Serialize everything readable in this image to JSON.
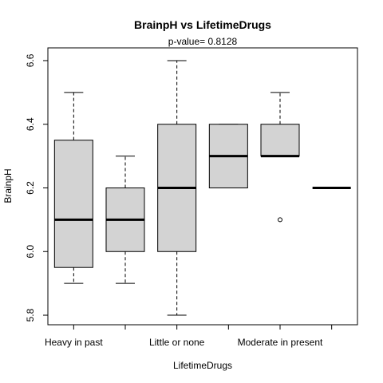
{
  "chart_data": {
    "type": "boxplot",
    "title": "BrainpH  vs  LifetimeDrugs",
    "subtitle": "p-value= 0.8128",
    "xlabel": "LifetimeDrugs",
    "ylabel": "BrainpH",
    "ylim": [
      5.77,
      6.64
    ],
    "yticks": [
      5.8,
      6.0,
      6.2,
      6.4,
      6.6
    ],
    "ytick_labels": [
      "5.8",
      "6.0",
      "6.2",
      "6.4",
      "6.6"
    ],
    "xtick_labels": [
      "Heavy in past",
      "",
      "Little or none",
      "",
      "Moderate in present",
      ""
    ],
    "grid": false,
    "box_fill": "#d3d3d3",
    "groups": [
      {
        "whisker_low": 5.9,
        "q1": 5.95,
        "median": 6.1,
        "q3": 6.35,
        "whisker_high": 6.5,
        "outliers": []
      },
      {
        "whisker_low": 5.9,
        "q1": 6.0,
        "median": 6.1,
        "q3": 6.2,
        "whisker_high": 6.3,
        "outliers": []
      },
      {
        "whisker_low": 5.8,
        "q1": 6.0,
        "median": 6.2,
        "q3": 6.4,
        "whisker_high": 6.6,
        "outliers": []
      },
      {
        "whisker_low": 6.2,
        "q1": 6.2,
        "median": 6.3,
        "q3": 6.4,
        "whisker_high": 6.4,
        "outliers": []
      },
      {
        "whisker_low": 6.3,
        "q1": 6.3,
        "median": 6.3,
        "q3": 6.4,
        "whisker_high": 6.5,
        "outliers": [
          6.1
        ]
      },
      {
        "whisker_low": 6.2,
        "q1": 6.2,
        "median": 6.2,
        "q3": 6.2,
        "whisker_high": 6.2,
        "outliers": []
      }
    ]
  }
}
